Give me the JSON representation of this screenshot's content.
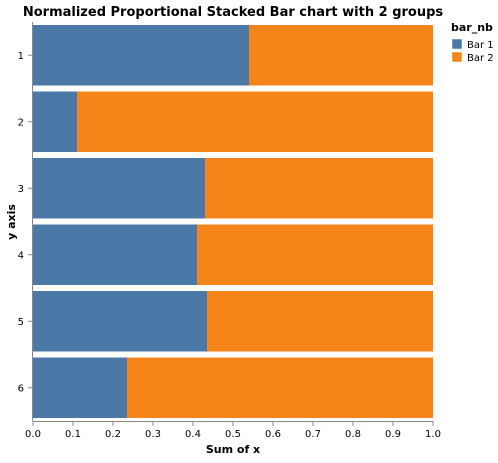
{
  "chart_data": {
    "type": "bar",
    "orientation": "horizontal",
    "stacked": "normalize",
    "title": "Normalized Proportional Stacked Bar chart with 2 groups",
    "xlabel": "Sum of x",
    "ylabel": "y axis",
    "xlim": [
      0,
      1
    ],
    "x_ticks": [
      "0.0",
      "0.1",
      "0.2",
      "0.3",
      "0.4",
      "0.5",
      "0.6",
      "0.7",
      "0.8",
      "0.9",
      "1.0"
    ],
    "categories": [
      "1",
      "2",
      "3",
      "4",
      "5",
      "6"
    ],
    "series": [
      {
        "name": "Bar 1",
        "color": "#4c78a8",
        "values": [
          0.54,
          0.11,
          0.43,
          0.41,
          0.435,
          0.235
        ]
      },
      {
        "name": "Bar 2",
        "color": "#f58518",
        "values": [
          0.46,
          0.89,
          0.57,
          0.59,
          0.565,
          0.765
        ]
      }
    ],
    "grid": false,
    "legend": {
      "title": "bar_nb",
      "position": "top-right"
    }
  }
}
